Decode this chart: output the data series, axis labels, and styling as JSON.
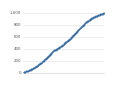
{
  "title": "",
  "xlabel": "",
  "ylabel": "",
  "background_color": "#ffffff",
  "plot_background_color": "#ffffff",
  "marker_color": "#3a6ea5",
  "marker_style": "o",
  "marker_size": 1.2,
  "line_width": 0,
  "grid_color": "#e0e0e0",
  "ylim": [
    0,
    1050
  ],
  "xlim": [
    1848,
    2024
  ],
  "yticks": [
    0,
    200,
    400,
    600,
    800,
    1000
  ],
  "ytick_labels": [
    "0",
    "200",
    "400",
    "600",
    "800",
    "1,000"
  ],
  "years": [
    1850,
    1851,
    1852,
    1853,
    1854,
    1855,
    1856,
    1857,
    1858,
    1859,
    1860,
    1861,
    1862,
    1863,
    1864,
    1865,
    1866,
    1867,
    1868,
    1869,
    1870,
    1871,
    1872,
    1873,
    1874,
    1875,
    1876,
    1877,
    1878,
    1879,
    1880,
    1881,
    1882,
    1883,
    1884,
    1885,
    1886,
    1887,
    1888,
    1889,
    1890,
    1891,
    1892,
    1893,
    1894,
    1895,
    1896,
    1897,
    1898,
    1899,
    1900,
    1901,
    1902,
    1903,
    1904,
    1905,
    1906,
    1907,
    1908,
    1909,
    1910,
    1911,
    1912,
    1913,
    1914,
    1915,
    1916,
    1917,
    1918,
    1919,
    1920,
    1921,
    1922,
    1923,
    1924,
    1925,
    1926,
    1927,
    1928,
    1929,
    1930,
    1931,
    1932,
    1933,
    1934,
    1935,
    1936,
    1937,
    1938,
    1939,
    1940,
    1941,
    1942,
    1943,
    1944,
    1945,
    1946,
    1947,
    1948,
    1949,
    1950,
    1951,
    1952,
    1953,
    1954,
    1955,
    1956,
    1957,
    1958,
    1959,
    1960,
    1961,
    1962,
    1963,
    1964,
    1965,
    1966,
    1967,
    1968,
    1969,
    1970,
    1971,
    1972,
    1973,
    1974,
    1975,
    1976,
    1977,
    1978,
    1979,
    1980,
    1981,
    1982,
    1983,
    1984,
    1985,
    1986,
    1987,
    1988,
    1989,
    1990,
    1991,
    1992,
    1993,
    1994,
    1995,
    1996,
    1997,
    1998,
    1999,
    2000,
    2001,
    2002,
    2003,
    2004,
    2005,
    2006,
    2007,
    2008,
    2009,
    2010,
    2011,
    2012,
    2013,
    2014,
    2015,
    2016,
    2017,
    2018,
    2019,
    2020,
    2021,
    2022
  ],
  "values": [
    5,
    7,
    9,
    12,
    14,
    17,
    19,
    22,
    25,
    28,
    31,
    34,
    37,
    41,
    44,
    48,
    51,
    55,
    59,
    63,
    67,
    72,
    76,
    81,
    86,
    91,
    96,
    101,
    106,
    112,
    117,
    123,
    129,
    135,
    141,
    147,
    153,
    159,
    165,
    172,
    178,
    184,
    191,
    198,
    205,
    212,
    219,
    226,
    233,
    241,
    248,
    256,
    264,
    272,
    280,
    289,
    297,
    306,
    315,
    324,
    333,
    341,
    349,
    358,
    363,
    368,
    373,
    376,
    378,
    382,
    386,
    390,
    394,
    399,
    404,
    409,
    415,
    420,
    426,
    432,
    438,
    444,
    449,
    455,
    461,
    467,
    474,
    481,
    488,
    495,
    502,
    509,
    515,
    521,
    527,
    532,
    538,
    545,
    552,
    559,
    566,
    574,
    581,
    589,
    596,
    604,
    612,
    620,
    628,
    636,
    644,
    652,
    660,
    668,
    676,
    684,
    693,
    701,
    709,
    718,
    727,
    736,
    744,
    752,
    760,
    768,
    776,
    784,
    792,
    800,
    808,
    815,
    822,
    829,
    835,
    841,
    847,
    852,
    857,
    863,
    869,
    876,
    882,
    888,
    893,
    898,
    903,
    908,
    912,
    917,
    921,
    925,
    929,
    932,
    935,
    938,
    941,
    944,
    947,
    950,
    953,
    956,
    959,
    962,
    965,
    968,
    971,
    974,
    977,
    980,
    983,
    986,
    990
  ]
}
